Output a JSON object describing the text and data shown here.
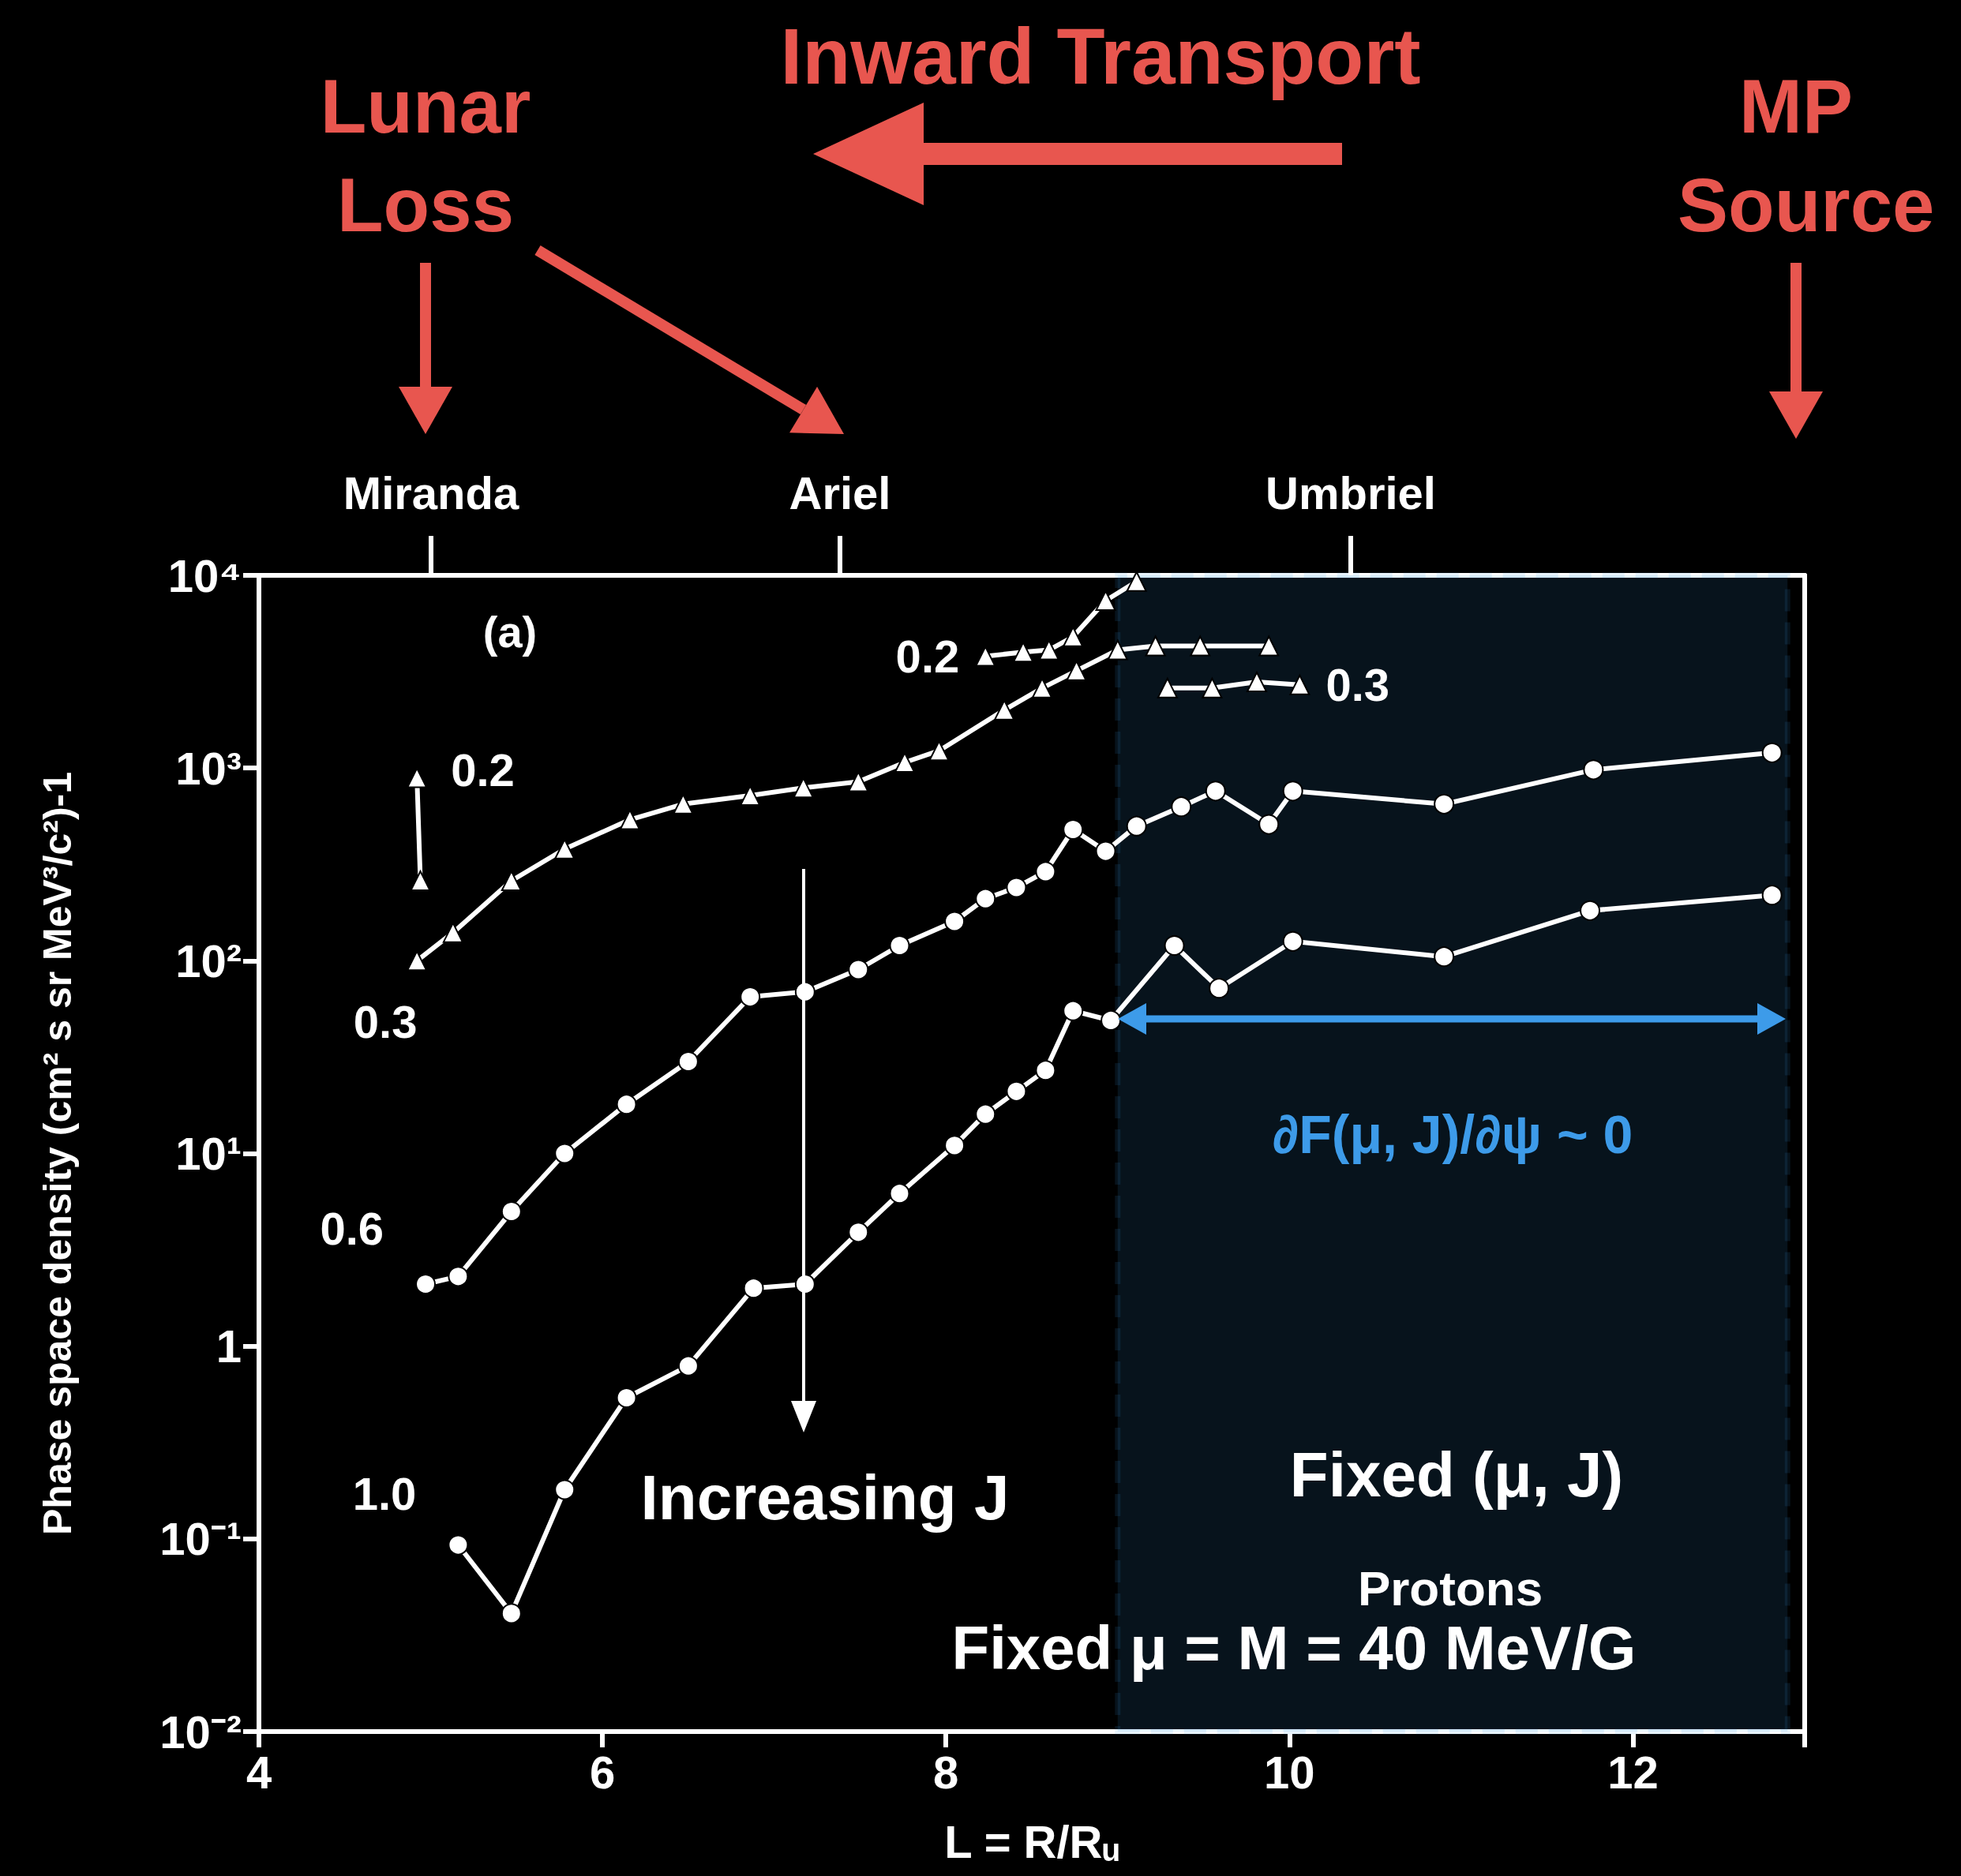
{
  "chart_data": {
    "type": "line",
    "xlabel": "L = R/Rᵤ",
    "ylabel": "Phase space density (cm² s sr MeV³/c²)-1",
    "log": "y",
    "grid": false,
    "legend": false,
    "line_style": "solid",
    "xlim": [
      4,
      13
    ],
    "xticks": [
      4,
      6,
      8,
      10,
      12
    ],
    "ylim": [
      0.01,
      10000
    ],
    "yticks": [
      {
        "value": 10000,
        "label": "10⁴"
      },
      {
        "value": 1000,
        "label": "10³"
      },
      {
        "value": 100,
        "label": "10²"
      },
      {
        "value": 10,
        "label": "10¹"
      },
      1,
      {
        "value": 0.1,
        "label": "10⁻¹"
      },
      {
        "value": 0.01,
        "label": "10⁻²"
      }
    ],
    "series": [
      {
        "name": "0.2",
        "color": "#ffffff",
        "marker": "triangle",
        "x": [
          4.92,
          4.94,
          null,
          8.23,
          8.45,
          8.6,
          8.74,
          8.93,
          9.11
        ],
        "values": [
          890,
          260,
          null,
          3800,
          4000,
          4100,
          4800,
          7400,
          9300
        ]
      },
      {
        "name": "0.3",
        "color": "#ffffff",
        "marker": "triangle",
        "x": [
          4.92,
          5.13,
          5.47,
          5.78,
          6.16,
          6.47,
          6.86,
          7.17,
          7.49,
          7.76,
          7.96,
          8.34,
          8.56,
          8.76,
          9.0,
          9.22,
          9.48,
          9.88,
          null,
          9.29,
          9.55,
          9.81,
          10.06
        ],
        "values": [
          100,
          140,
          260,
          380,
          540,
          650,
          720,
          790,
          850,
          1070,
          1230,
          2000,
          2600,
          3200,
          4100,
          4300,
          4300,
          4300,
          null,
          2600,
          2600,
          2800,
          2700
        ]
      },
      {
        "name": "0.6",
        "color": "#ffffff",
        "marker": "circle",
        "x": [
          4.97,
          5.16,
          5.47,
          5.78,
          6.14,
          6.5,
          6.86,
          7.18,
          7.49,
          7.73,
          8.05,
          8.23,
          8.41,
          8.58,
          8.74,
          8.93,
          9.11,
          9.37,
          9.57,
          9.88,
          10.02,
          10.9,
          11.77,
          12.81
        ],
        "values": [
          2.1,
          2.3,
          5.0,
          10,
          18,
          30,
          65,
          69,
          90,
          120,
          160,
          210,
          240,
          290,
          480,
          370,
          500,
          630,
          760,
          510,
          760,
          650,
          980,
          1200
        ]
      },
      {
        "name": "1.0",
        "color": "#ffffff",
        "marker": "circle",
        "x": [
          5.16,
          5.47,
          5.78,
          6.14,
          6.5,
          6.88,
          7.18,
          7.49,
          7.73,
          8.05,
          8.23,
          8.41,
          8.58,
          8.74,
          8.96,
          9.33,
          9.59,
          10.02,
          10.9,
          11.75,
          12.81
        ],
        "values": [
          0.093,
          0.041,
          0.18,
          0.54,
          0.79,
          2.0,
          2.1,
          3.9,
          6.2,
          11,
          16,
          21,
          27,
          55,
          49,
          120,
          72,
          126,
          105,
          182,
          219
        ]
      }
    ],
    "bands": [
      {
        "axis": "x",
        "from": 9.0,
        "to": 12.9,
        "label": "∂F(μ, J)/∂ψ ~ 0",
        "color": "#3d9be9"
      }
    ],
    "annotations": [
      "Lunar Loss",
      "Inward Transport",
      "MP Source",
      "(a)",
      "Increasing J",
      "Fixed (μ, J)",
      "Protons",
      "Fixed μ =  M = 40 MeV/G",
      "Miranda",
      "Ariel",
      "Umbriel"
    ]
  }
}
